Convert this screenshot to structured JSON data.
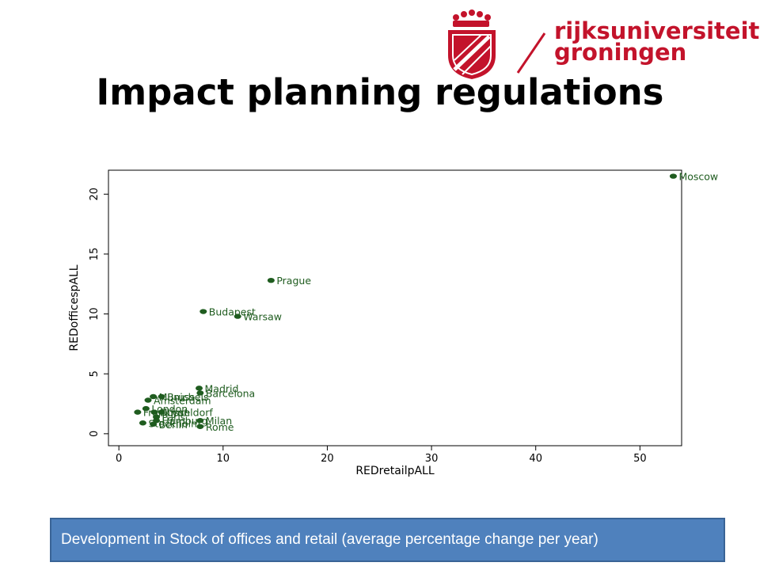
{
  "header": {
    "title": "Impact planning regulations",
    "logo": {
      "line1": "rijksuniversiteit",
      "line2": "groningen",
      "color": "#c3132b"
    }
  },
  "caption": "Development in Stock of offices and retail (average percentage change per year)",
  "colors": {
    "marker": "#1f5c1f",
    "label": "#1f5c1f",
    "caption_bg": "#4f81bd"
  },
  "chart_data": {
    "type": "scatter",
    "xlabel": "REDretailpALL",
    "ylabel": "REDofficespALL",
    "xlim": [
      -1,
      54
    ],
    "ylim": [
      -1,
      22
    ],
    "xticks": [
      0,
      10,
      20,
      30,
      40,
      50
    ],
    "yticks": [
      0,
      5,
      10,
      15,
      20
    ],
    "grid": false,
    "points": [
      {
        "label": "Moscow",
        "x": 53.2,
        "y": 21.5
      },
      {
        "label": "Prague",
        "x": 14.6,
        "y": 12.8
      },
      {
        "label": "Budapest",
        "x": 8.1,
        "y": 10.2
      },
      {
        "label": "Warsaw",
        "x": 11.4,
        "y": 9.8
      },
      {
        "label": "Madrid",
        "x": 7.7,
        "y": 3.8
      },
      {
        "label": "Barcelona",
        "x": 7.8,
        "y": 3.4
      },
      {
        "label": "Munich",
        "x": 3.3,
        "y": 3.1
      },
      {
        "label": "Brussels",
        "x": 4.1,
        "y": 3.1
      },
      {
        "label": "Amsterdam",
        "x": 2.8,
        "y": 2.8
      },
      {
        "label": "London",
        "x": 2.6,
        "y": 2.1
      },
      {
        "label": "Frankfurt",
        "x": 1.8,
        "y": 1.8
      },
      {
        "label": "Dusseldorf",
        "x": 3.4,
        "y": 1.8
      },
      {
        "label": "Lyon",
        "x": 4.1,
        "y": 1.8
      },
      {
        "label": "Paris",
        "x": 3.6,
        "y": 1.4
      },
      {
        "label": "Hamburg",
        "x": 3.6,
        "y": 1.1
      },
      {
        "label": "Milan",
        "x": 7.8,
        "y": 1.1
      },
      {
        "label": "Stockholm",
        "x": 2.3,
        "y": 0.9
      },
      {
        "label": "Berlin",
        "x": 3.3,
        "y": 0.8
      },
      {
        "label": "Rome",
        "x": 7.8,
        "y": 0.6
      }
    ]
  }
}
